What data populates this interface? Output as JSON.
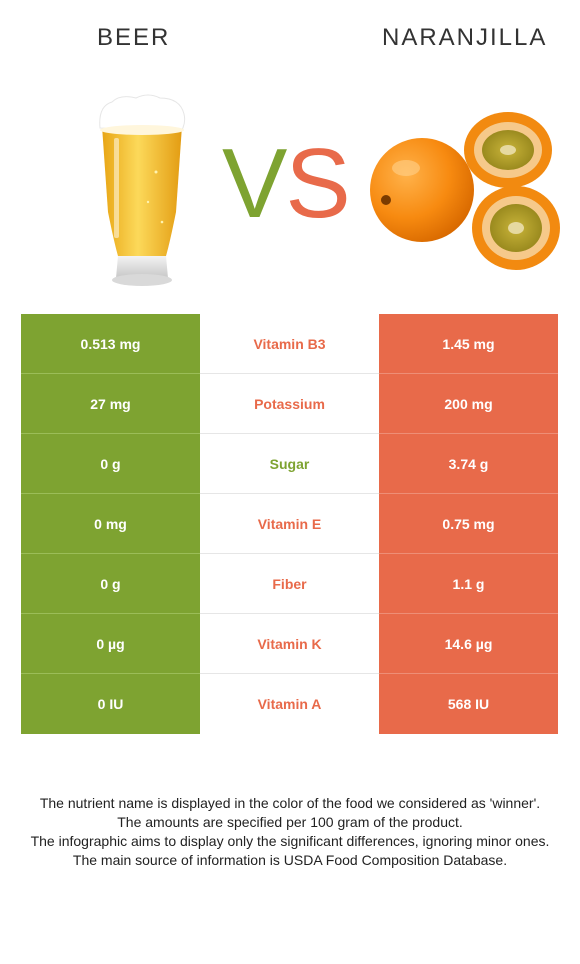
{
  "header": {
    "left_title": "BEER",
    "right_title": "NARANJILLA",
    "vs_v": "V",
    "vs_s": "S"
  },
  "colors": {
    "beer": "#7ea331",
    "naranjilla": "#e86a4a"
  },
  "rows": [
    {
      "beer": "0.513 mg",
      "nutrient": "Vitamin B3",
      "naranjilla": "1.45 mg",
      "winner": "naranjilla"
    },
    {
      "beer": "27 mg",
      "nutrient": "Potassium",
      "naranjilla": "200 mg",
      "winner": "naranjilla"
    },
    {
      "beer": "0 g",
      "nutrient": "Sugar",
      "naranjilla": "3.74 g",
      "winner": "beer"
    },
    {
      "beer": "0 mg",
      "nutrient": "Vitamin E",
      "naranjilla": "0.75 mg",
      "winner": "naranjilla"
    },
    {
      "beer": "0 g",
      "nutrient": "Fiber",
      "naranjilla": "1.1 g",
      "winner": "naranjilla"
    },
    {
      "beer": "0 µg",
      "nutrient": "Vitamin K",
      "naranjilla": "14.6 µg",
      "winner": "naranjilla"
    },
    {
      "beer": "0 IU",
      "nutrient": "Vitamin A",
      "naranjilla": "568 IU",
      "winner": "naranjilla"
    }
  ],
  "notes": [
    "The nutrient name is displayed in the color of the food we considered as 'winner'.",
    "The amounts are specified per 100 gram of the product.",
    "The infographic aims to display only the significant differences, ignoring minor ones.",
    "The main source of information is USDA Food Composition Database."
  ]
}
